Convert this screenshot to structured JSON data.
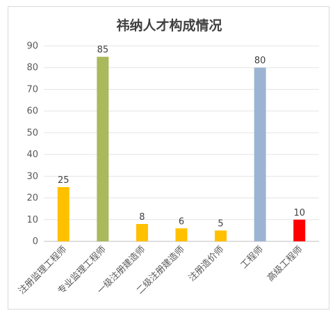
{
  "chart_data": {
    "type": "bar",
    "title": "祎纳人才构成情况",
    "categories": [
      "注册监理工程师",
      "专业监理工程师",
      "一级注册建造师",
      "二级注册建造师",
      "注册造价师",
      "工程师",
      "高级工程师"
    ],
    "values": [
      25,
      85,
      8,
      6,
      5,
      80,
      10
    ],
    "colors": [
      "#ffc000",
      "#a9b95b",
      "#ffc000",
      "#ffc000",
      "#ffc000",
      "#9db3d3",
      "#ff0000"
    ],
    "ylim": [
      0,
      90
    ],
    "yticks": [
      0,
      10,
      20,
      30,
      40,
      50,
      60,
      70,
      80,
      90
    ],
    "xlabel": "",
    "ylabel": "",
    "grid": true,
    "legend": "none"
  }
}
